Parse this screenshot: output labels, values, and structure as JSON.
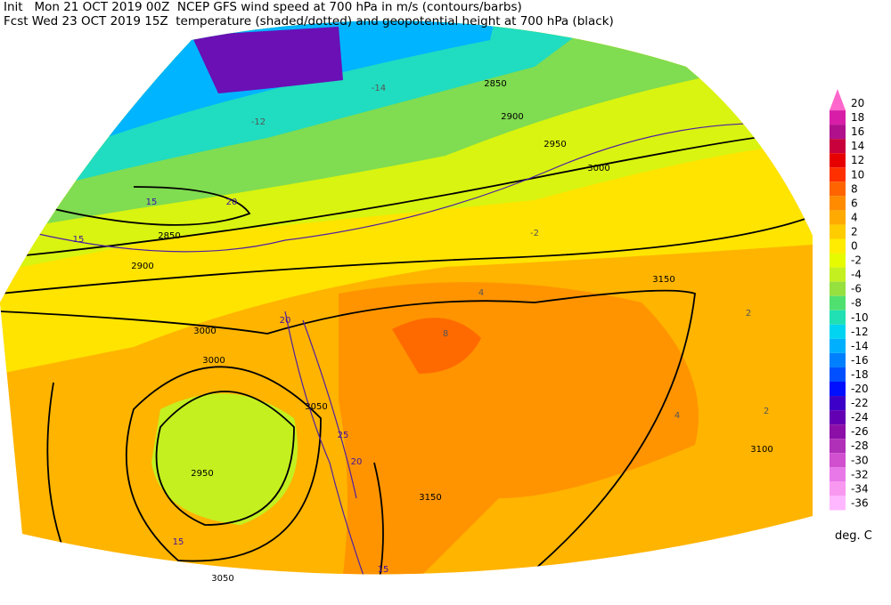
{
  "header": {
    "line1": "Init   Mon 21 OCT 2019 00Z  NCEP GFS wind speed at 700 hPa in m/s (contours/barbs)",
    "line2": "Fcst Wed 23 OCT 2019 15Z  temperature (shaded/dotted) and geopotential height at 700 hPa (black)"
  },
  "colorbar": {
    "unit": "deg. C",
    "levels": [
      {
        "value": 20,
        "color": "#ff66cc"
      },
      {
        "value": 18,
        "color": "#d81ea8"
      },
      {
        "value": 16,
        "color": "#b0108c"
      },
      {
        "value": 14,
        "color": "#c8003c"
      },
      {
        "value": 12,
        "color": "#e60000"
      },
      {
        "value": 10,
        "color": "#ff3000"
      },
      {
        "value": 8,
        "color": "#ff6400"
      },
      {
        "value": 6,
        "color": "#ff8c00"
      },
      {
        "value": 4,
        "color": "#ffaa00"
      },
      {
        "value": 2,
        "color": "#ffcc00"
      },
      {
        "value": 0,
        "color": "#ffec00"
      },
      {
        "value": -2,
        "color": "#e6fa00"
      },
      {
        "value": -4,
        "color": "#c4f020"
      },
      {
        "value": -6,
        "color": "#96e040"
      },
      {
        "value": -8,
        "color": "#50e070"
      },
      {
        "value": -10,
        "color": "#20e0b4"
      },
      {
        "value": -12,
        "color": "#00d4f0"
      },
      {
        "value": -14,
        "color": "#00b0ff"
      },
      {
        "value": -16,
        "color": "#0080ff"
      },
      {
        "value": -18,
        "color": "#0050ff"
      },
      {
        "value": -20,
        "color": "#0010ff"
      },
      {
        "value": -22,
        "color": "#3c00c8"
      },
      {
        "value": -24,
        "color": "#6400b4"
      },
      {
        "value": -26,
        "color": "#8c10a8"
      },
      {
        "value": -28,
        "color": "#b030b8"
      },
      {
        "value": -30,
        "color": "#d050d0"
      },
      {
        "value": -32,
        "color": "#e878e8"
      },
      {
        "value": -34,
        "color": "#f898f0"
      },
      {
        "value": -36,
        "color": "#ffb8ff"
      }
    ]
  },
  "map": {
    "labels": [
      "3000",
      "3150",
      "2950",
      "3050",
      "2850",
      "2900",
      "3100",
      "3000",
      "3050",
      "3150",
      "2950",
      "2850",
      "2900",
      "3000",
      "15",
      "20",
      "25",
      "15",
      "20",
      "15",
      "20",
      "15",
      "-2",
      "2",
      "4",
      "8",
      "-14",
      "-12",
      "2",
      "4"
    ]
  }
}
